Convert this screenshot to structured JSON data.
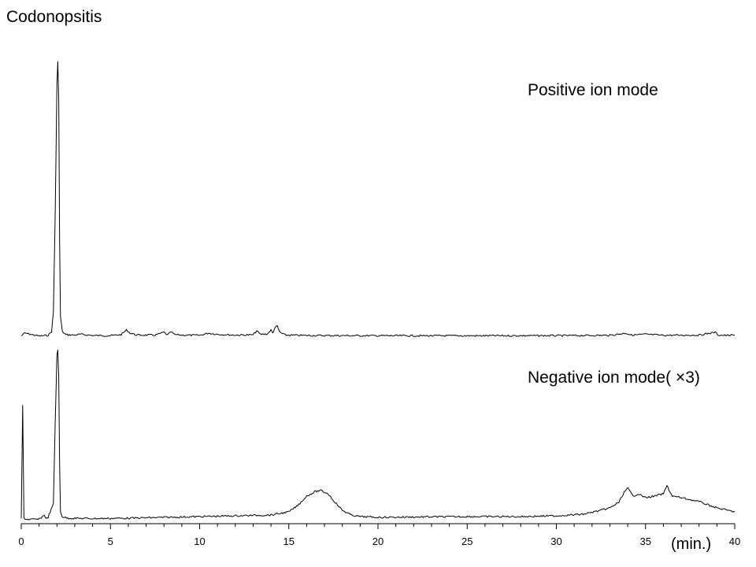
{
  "chart_data": {
    "type": "line",
    "title": "Codonopsitis",
    "xlabel": "(min.)",
    "ylabel": "",
    "xlim": [
      0,
      40
    ],
    "x_ticks": [
      "0",
      "5",
      "10",
      "15",
      "20",
      "25",
      "30",
      "35",
      "40"
    ],
    "grid": false,
    "series": [
      {
        "name": "Positive ion mode",
        "x": [
          0.0,
          0.2,
          1.0,
          1.5,
          1.7,
          1.8,
          1.9,
          2.0,
          2.05,
          2.1,
          2.15,
          2.2,
          2.3,
          2.5,
          3.0,
          3.3,
          4.0,
          5.0,
          5.6,
          5.9,
          6.1,
          6.5,
          7.5,
          8.0,
          8.2,
          8.4,
          8.6,
          9.0,
          10.0,
          10.5,
          11.0,
          12.0,
          13.0,
          13.2,
          13.4,
          13.8,
          14.0,
          14.1,
          14.2,
          14.35,
          14.5,
          14.8,
          16.0,
          20.0,
          25.0,
          30.0,
          33.0,
          33.9,
          34.2,
          35.0,
          36.0,
          38.0,
          38.9,
          39.1,
          39.5,
          40.0
        ],
        "y": [
          0.5,
          4.0,
          0.3,
          1.2,
          6.0,
          30.0,
          150.0,
          320.0,
          350.0,
          300.0,
          120.0,
          25.0,
          6.0,
          2.0,
          1.5,
          2.5,
          1.0,
          0.8,
          2.0,
          8.0,
          4.0,
          1.5,
          1.5,
          5.0,
          1.5,
          5.5,
          2.0,
          1.5,
          1.2,
          4.0,
          2.5,
          1.5,
          1.8,
          7.0,
          2.5,
          3.0,
          8.0,
          4.0,
          10.0,
          13.0,
          5.0,
          1.5,
          1.0,
          0.7,
          0.6,
          0.8,
          1.2,
          4.0,
          1.5,
          2.5,
          1.2,
          1.5,
          5.0,
          1.5,
          1.0,
          1.5
        ]
      },
      {
        "name": "Negative ion mode( ×3)",
        "x": [
          0.0,
          0.08,
          0.15,
          0.3,
          1.0,
          1.3,
          1.4,
          1.5,
          1.8,
          1.9,
          2.0,
          2.05,
          2.1,
          2.15,
          2.2,
          2.3,
          2.6,
          4.0,
          6.0,
          8.0,
          10.0,
          12.0,
          14.0,
          15.0,
          15.5,
          16.0,
          16.5,
          16.8,
          17.2,
          17.6,
          18.0,
          18.5,
          19.0,
          20.0,
          22.0,
          25.0,
          28.0,
          30.0,
          31.5,
          32.5,
          33.0,
          33.5,
          33.8,
          34.0,
          34.3,
          34.6,
          35.0,
          35.5,
          36.0,
          36.2,
          36.5,
          37.0,
          38.0,
          39.0,
          40.0
        ],
        "y": [
          1.0,
          145.0,
          2.0,
          0.5,
          0.5,
          6.0,
          1.0,
          3.0,
          20.0,
          120.0,
          210.0,
          215.0,
          180.0,
          70.0,
          10.0,
          4.0,
          2.0,
          1.5,
          2.0,
          3.0,
          4.0,
          5.0,
          6.0,
          10.0,
          18.0,
          30.0,
          36.0,
          37.0,
          33.0,
          22.0,
          12.0,
          6.0,
          4.0,
          3.0,
          3.5,
          4.0,
          4.0,
          5.0,
          7.0,
          12.0,
          15.0,
          22.0,
          35.0,
          40.0,
          30.0,
          33.0,
          28.0,
          30.0,
          33.0,
          43.0,
          30.0,
          28.0,
          23.0,
          15.0,
          10.0
        ]
      }
    ]
  },
  "colors": {
    "line": "#000000",
    "axis": "#000000",
    "background": "#ffffff"
  }
}
